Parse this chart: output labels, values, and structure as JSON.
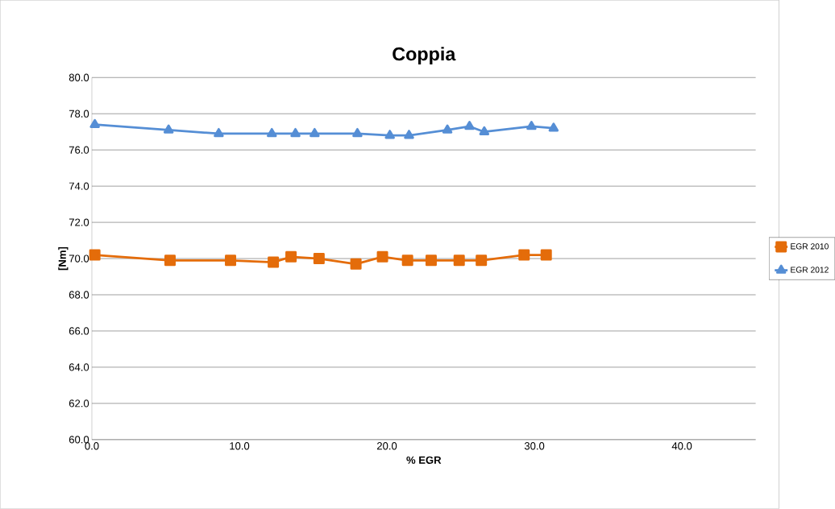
{
  "chart_data": {
    "type": "line",
    "title": "Coppia",
    "xlabel": "% EGR",
    "ylabel": "[Nm]",
    "xlim": [
      0,
      45
    ],
    "xticks": [
      {
        "value": 0,
        "label": "0.0"
      },
      {
        "value": 10,
        "label": "10.0"
      },
      {
        "value": 20,
        "label": "20.0"
      },
      {
        "value": 30,
        "label": "30.0"
      },
      {
        "value": 40,
        "label": "40.0"
      }
    ],
    "ylim": [
      60,
      80
    ],
    "yticks": [
      {
        "value": 60,
        "label": "60.0"
      },
      {
        "value": 62,
        "label": "62.0"
      },
      {
        "value": 64,
        "label": "64.0"
      },
      {
        "value": 66,
        "label": "66.0"
      },
      {
        "value": 68,
        "label": "68.0"
      },
      {
        "value": 70,
        "label": "70.0"
      },
      {
        "value": 72,
        "label": "72.0"
      },
      {
        "value": 74,
        "label": "74.0"
      },
      {
        "value": 76,
        "label": "76.0"
      },
      {
        "value": 78,
        "label": "78.0"
      },
      {
        "value": 80,
        "label": "80.0"
      }
    ],
    "grid": "y",
    "legend": "right",
    "series": [
      {
        "name": "EGR 2010",
        "color": "#e46c0a",
        "marker": "square",
        "x": [
          0.2,
          5.3,
          9.4,
          12.3,
          13.5,
          15.4,
          17.9,
          19.7,
          21.4,
          23.0,
          24.9,
          26.4,
          29.3,
          30.8
        ],
        "values": [
          70.2,
          69.9,
          69.9,
          69.8,
          70.1,
          70.0,
          69.7,
          70.1,
          69.9,
          69.9,
          69.9,
          69.9,
          70.2,
          70.2
        ]
      },
      {
        "name": "EGR 2012",
        "color": "#558ed5",
        "marker": "triangle",
        "x": [
          0.2,
          5.2,
          8.6,
          12.2,
          13.8,
          15.1,
          18.0,
          20.2,
          21.5,
          24.1,
          25.6,
          26.6,
          29.8,
          31.3
        ],
        "values": [
          77.4,
          77.1,
          76.9,
          76.9,
          76.9,
          76.9,
          76.9,
          76.8,
          76.8,
          77.1,
          77.3,
          77.0,
          77.3,
          77.2
        ]
      }
    ]
  }
}
